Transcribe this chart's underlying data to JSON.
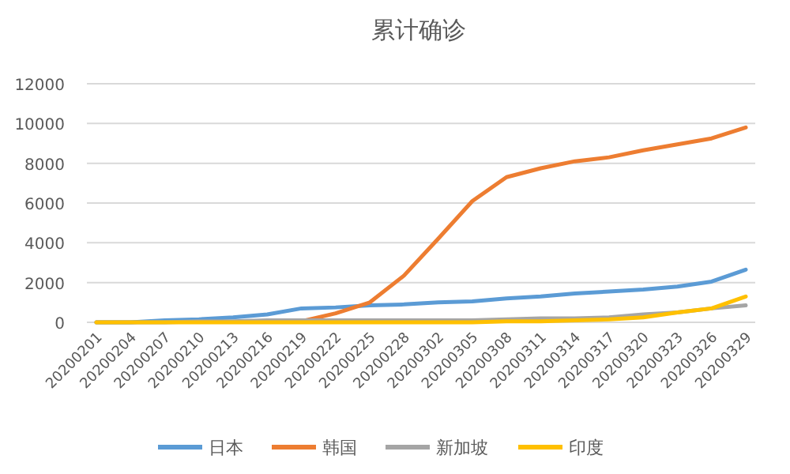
{
  "chart_data": {
    "type": "line",
    "title": "累计确诊",
    "categories": [
      "20200201",
      "20200204",
      "20200207",
      "20200210",
      "20200213",
      "20200216",
      "20200219",
      "20200222",
      "20200225",
      "20200228",
      "20200302",
      "20200305",
      "20200308",
      "20200311",
      "20200314",
      "20200317",
      "20200320",
      "20200323",
      "20200326",
      "20200329"
    ],
    "series": [
      {
        "name": "日本",
        "color": "#5b9bd5",
        "values": [
          0,
          0,
          100,
          150,
          250,
          400,
          700,
          750,
          850,
          900,
          1000,
          1050,
          1200,
          1300,
          1450,
          1550,
          1650,
          1800,
          2050,
          2650
        ]
      },
      {
        "name": "韩国",
        "color": "#ed7d31",
        "values": [
          null,
          null,
          null,
          null,
          null,
          null,
          50,
          450,
          1000,
          2350,
          4200,
          6100,
          7300,
          7750,
          8100,
          8300,
          8650,
          8950,
          9250,
          9800
        ]
      },
      {
        "name": "新加坡",
        "color": "#a5a5a5",
        "values": [
          0,
          0,
          0,
          50,
          50,
          100,
          100,
          100,
          100,
          100,
          100,
          100,
          150,
          200,
          200,
          250,
          400,
          500,
          700,
          850
        ]
      },
      {
        "name": "印度",
        "color": "#ffc000",
        "values": [
          0,
          0,
          0,
          0,
          0,
          0,
          0,
          0,
          0,
          0,
          0,
          0,
          50,
          50,
          100,
          150,
          250,
          500,
          700,
          1300
        ]
      }
    ],
    "ylim": [
      0,
      12000
    ],
    "yticks": [
      0,
      2000,
      4000,
      6000,
      8000,
      10000,
      12000
    ],
    "grid": "y",
    "legend": "bottom",
    "marker": "none",
    "line_style": "solid"
  }
}
